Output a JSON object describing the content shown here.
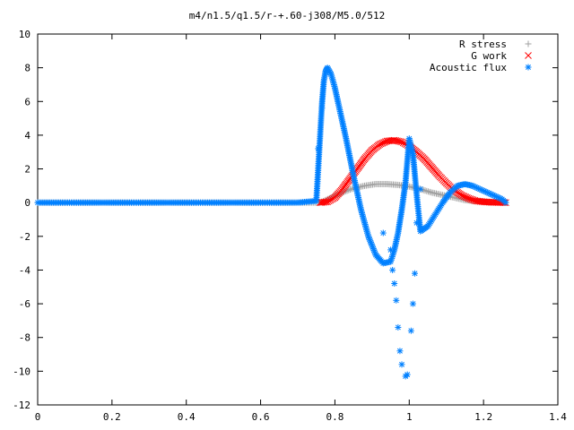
{
  "chart_data": {
    "type": "scatter",
    "title": "m4/n1.5/q1.5/r-+.60-j308/M5.0/512",
    "xlabel": "",
    "ylabel": "",
    "xlim": [
      0,
      1.4
    ],
    "ylim": [
      -12,
      10
    ],
    "x_ticks": [
      "0",
      "0.2",
      "0.4",
      "0.6",
      "0.8",
      "1",
      "1.2",
      "1.4"
    ],
    "y_ticks": [
      "10",
      "8",
      "6",
      "4",
      "2",
      "0",
      "-2",
      "-4",
      "-6",
      "-8",
      "-10",
      "-12"
    ],
    "grid": false,
    "legend_position": "top-right",
    "series": [
      {
        "name": "R stress",
        "marker": "+",
        "color": "#a0a0a0",
        "x": [
          0.0,
          0.1,
          0.2,
          0.3,
          0.4,
          0.5,
          0.6,
          0.7,
          0.76,
          0.79,
          0.82,
          0.85,
          0.88,
          0.91,
          0.94,
          0.97,
          1.0,
          1.03,
          1.06,
          1.09,
          1.12,
          1.15,
          1.18,
          1.21,
          1.24,
          1.26
        ],
        "y": [
          0,
          0,
          0,
          0,
          0,
          0,
          0,
          0,
          0,
          0.3,
          0.6,
          0.85,
          1.0,
          1.1,
          1.1,
          1.05,
          0.95,
          0.8,
          0.6,
          0.45,
          0.3,
          0.15,
          0.08,
          0.03,
          0.01,
          0
        ]
      },
      {
        "name": "G work",
        "marker": "x",
        "color": "#ff0000",
        "x": [
          0.76,
          0.78,
          0.8,
          0.82,
          0.84,
          0.86,
          0.88,
          0.9,
          0.92,
          0.94,
          0.96,
          0.98,
          1.0,
          1.02,
          1.04,
          1.06,
          1.08,
          1.1,
          1.12,
          1.14,
          1.16,
          1.18,
          1.2,
          1.22,
          1.24,
          1.26
        ],
        "y": [
          0,
          0.05,
          0.3,
          0.8,
          1.4,
          2.0,
          2.6,
          3.1,
          3.45,
          3.65,
          3.7,
          3.6,
          3.35,
          3.0,
          2.6,
          2.1,
          1.6,
          1.15,
          0.75,
          0.45,
          0.25,
          0.1,
          0.05,
          0.02,
          0.01,
          0
        ]
      },
      {
        "name": "Acoustic flux",
        "marker": "*",
        "color": "#0080ff",
        "x": [
          0.0,
          0.1,
          0.2,
          0.3,
          0.4,
          0.5,
          0.6,
          0.7,
          0.75,
          0.765,
          0.77,
          0.775,
          0.78,
          0.79,
          0.8,
          0.81,
          0.83,
          0.85,
          0.87,
          0.89,
          0.91,
          0.93,
          0.95,
          0.96,
          0.97,
          0.98,
          0.99,
          1.0,
          1.01,
          1.02,
          1.03,
          1.05,
          1.07,
          1.09,
          1.11,
          1.13,
          1.15,
          1.17,
          1.19,
          1.21,
          1.23,
          1.25,
          1.26
        ],
        "y": [
          0,
          0,
          0,
          0,
          0,
          0,
          0,
          0,
          0.1,
          5.8,
          7.2,
          7.8,
          8.0,
          7.6,
          6.8,
          5.8,
          3.8,
          1.6,
          -0.4,
          -2.0,
          -3.1,
          -3.6,
          -3.5,
          -2.8,
          -1.8,
          -0.4,
          1.2,
          3.8,
          2.9,
          0.5,
          -1.7,
          -1.4,
          -0.7,
          0.0,
          0.6,
          1.0,
          1.1,
          1.0,
          0.8,
          0.6,
          0.4,
          0.2,
          0.0
        ]
      },
      {
        "name": "",
        "marker": "*",
        "color": "#0080ff",
        "x": [
          0.755,
          0.765,
          0.93,
          0.95,
          0.955,
          0.96,
          0.965,
          0.97,
          0.975,
          0.98,
          0.99,
          0.995,
          1.005,
          1.01,
          1.015,
          1.02,
          1.03
        ],
        "y": [
          3.2,
          5.6,
          -1.8,
          -2.8,
          -4.0,
          -4.8,
          -5.8,
          -7.4,
          -8.8,
          -9.6,
          -10.3,
          -10.2,
          -7.6,
          -6.0,
          -4.2,
          -1.2,
          0.8
        ]
      }
    ]
  }
}
